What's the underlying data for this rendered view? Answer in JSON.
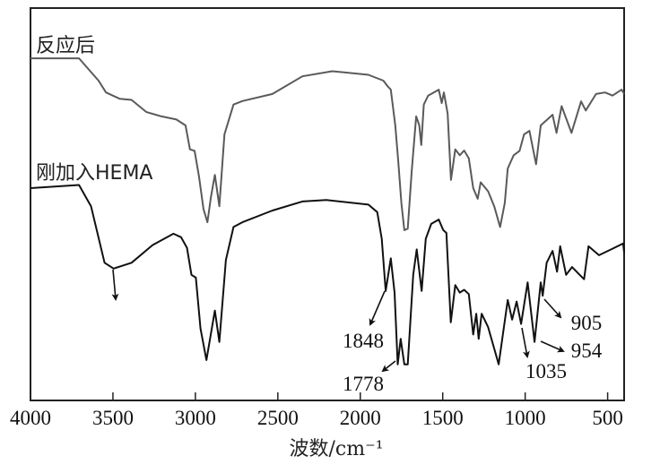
{
  "chart_data": {
    "type": "line",
    "title": "",
    "xlabel": "波数/cm⁻¹",
    "ylabel": "",
    "xlim": [
      4000,
      400
    ],
    "x_reversed": true,
    "ylim": [
      0,
      100
    ],
    "grid": false,
    "legend": "inline labels above each curve",
    "xticks": [
      4000,
      3500,
      3000,
      2500,
      2000,
      1500,
      1000,
      500
    ],
    "xtick_labels": [
      "4000",
      "3500",
      "3000",
      "2500",
      "2000",
      "1500",
      "1000",
      "500"
    ],
    "series": [
      {
        "name": "反应后",
        "color": "#5a5a5a",
        "points": [
          [
            4000,
            87.2
          ],
          [
            3706,
            87.2
          ],
          [
            3587,
            81.5
          ],
          [
            3542,
            78.5
          ],
          [
            3460,
            76.9
          ],
          [
            3387,
            76.6
          ],
          [
            3297,
            73.5
          ],
          [
            3206,
            72.4
          ],
          [
            3115,
            71.6
          ],
          [
            3060,
            70.1
          ],
          [
            3033,
            64.0
          ],
          [
            3005,
            63.6
          ],
          [
            2978,
            57.1
          ],
          [
            2951,
            48.8
          ],
          [
            2927,
            45.4
          ],
          [
            2906,
            51.8
          ],
          [
            2882,
            57.5
          ],
          [
            2855,
            49.5
          ],
          [
            2824,
            67.8
          ],
          [
            2769,
            75.4
          ],
          [
            2715,
            76.3
          ],
          [
            2533,
            78.1
          ],
          [
            2351,
            82.6
          ],
          [
            2170,
            83.9
          ],
          [
            1951,
            83.0
          ],
          [
            1860,
            81.5
          ],
          [
            1833,
            80.0
          ],
          [
            1815,
            79.2
          ],
          [
            1788,
            70.1
          ],
          [
            1770,
            61.0
          ],
          [
            1751,
            50.3
          ],
          [
            1733,
            43.4
          ],
          [
            1712,
            43.8
          ],
          [
            1688,
            58.7
          ],
          [
            1661,
            72.4
          ],
          [
            1642,
            70.1
          ],
          [
            1630,
            65.1
          ],
          [
            1615,
            75.4
          ],
          [
            1588,
            77.7
          ],
          [
            1524,
            79.2
          ],
          [
            1506,
            75.8
          ],
          [
            1493,
            78.5
          ],
          [
            1470,
            73.1
          ],
          [
            1450,
            56.2
          ],
          [
            1424,
            64.0
          ],
          [
            1397,
            62.5
          ],
          [
            1370,
            63.7
          ],
          [
            1342,
            61.7
          ],
          [
            1315,
            54.1
          ],
          [
            1288,
            51.4
          ],
          [
            1270,
            55.6
          ],
          [
            1225,
            53.3
          ],
          [
            1188,
            49.5
          ],
          [
            1152,
            44.2
          ],
          [
            1124,
            50.3
          ],
          [
            1106,
            59.1
          ],
          [
            1070,
            62.5
          ],
          [
            1034,
            63.6
          ],
          [
            1007,
            67.8
          ],
          [
            974,
            68.7
          ],
          [
            934,
            60.2
          ],
          [
            906,
            70.1
          ],
          [
            834,
            72.8
          ],
          [
            810,
            68.2
          ],
          [
            779,
            75.0
          ],
          [
            719,
            68.2
          ],
          [
            661,
            76.2
          ],
          [
            633,
            73.9
          ],
          [
            570,
            78.1
          ],
          [
            516,
            78.5
          ],
          [
            470,
            77.7
          ],
          [
            415,
            79.2
          ],
          [
            400,
            78.1
          ]
        ]
      },
      {
        "name": "刚加入HEMA",
        "color": "#111111",
        "points": [
          [
            4000,
            54.1
          ],
          [
            3706,
            54.9
          ],
          [
            3633,
            49.5
          ],
          [
            3551,
            35.1
          ],
          [
            3496,
            33.6
          ],
          [
            3387,
            35.1
          ],
          [
            3260,
            39.6
          ],
          [
            3133,
            42.5
          ],
          [
            3087,
            41.6
          ],
          [
            3051,
            38.9
          ],
          [
            3024,
            32.0
          ],
          [
            2997,
            31.3
          ],
          [
            2969,
            18.3
          ],
          [
            2933,
            10.3
          ],
          [
            2882,
            22.9
          ],
          [
            2855,
            14.9
          ],
          [
            2815,
            35.8
          ],
          [
            2769,
            44.2
          ],
          [
            2715,
            45.4
          ],
          [
            2533,
            48.4
          ],
          [
            2351,
            50.7
          ],
          [
            2206,
            51.1
          ],
          [
            1951,
            49.9
          ],
          [
            1897,
            48.0
          ],
          [
            1870,
            41.2
          ],
          [
            1846,
            27.9
          ],
          [
            1815,
            36.2
          ],
          [
            1792,
            27.5
          ],
          [
            1773,
            9.2
          ],
          [
            1755,
            15.7
          ],
          [
            1733,
            9.2
          ],
          [
            1712,
            9.2
          ],
          [
            1679,
            32.0
          ],
          [
            1658,
            38.5
          ],
          [
            1628,
            27.9
          ],
          [
            1603,
            41.2
          ],
          [
            1570,
            45.0
          ],
          [
            1524,
            46.1
          ],
          [
            1497,
            43.4
          ],
          [
            1478,
            42.7
          ],
          [
            1451,
            19.9
          ],
          [
            1424,
            29.4
          ],
          [
            1397,
            27.5
          ],
          [
            1370,
            28.2
          ],
          [
            1342,
            27.1
          ],
          [
            1315,
            16.8
          ],
          [
            1297,
            22.1
          ],
          [
            1282,
            15.7
          ],
          [
            1264,
            22.1
          ],
          [
            1225,
            18.7
          ],
          [
            1161,
            9.2
          ],
          [
            1106,
            25.6
          ],
          [
            1079,
            20.6
          ],
          [
            1052,
            25.2
          ],
          [
            1025,
            19.5
          ],
          [
            985,
            30.1
          ],
          [
            943,
            14.9
          ],
          [
            906,
            30.1
          ],
          [
            894,
            26.7
          ],
          [
            870,
            35.1
          ],
          [
            834,
            38.1
          ],
          [
            807,
            32.8
          ],
          [
            788,
            39.3
          ],
          [
            752,
            32.0
          ],
          [
            716,
            34.0
          ],
          [
            679,
            32.4
          ],
          [
            643,
            30.9
          ],
          [
            616,
            39.3
          ],
          [
            552,
            37.0
          ],
          [
            479,
            38.5
          ],
          [
            406,
            40.0
          ],
          [
            400,
            37.7
          ]
        ]
      }
    ],
    "annotations": [
      "1848",
      "1778",
      "1035",
      "954",
      "905"
    ]
  }
}
